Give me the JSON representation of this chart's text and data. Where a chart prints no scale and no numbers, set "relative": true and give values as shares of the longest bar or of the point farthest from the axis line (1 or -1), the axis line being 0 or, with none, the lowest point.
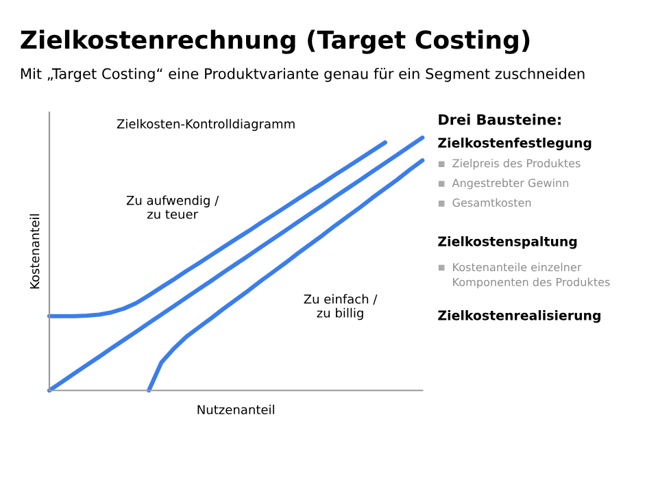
{
  "chart_data": [
    {
      "type": "line",
      "title": "Zielkostenrechnung (Target Costing)",
      "subtitle": "Mit „Target Costing“ eine Produktvariante genau für ein Segment zuschneiden",
      "xlabel": "Nutzenanteil",
      "ylabel": "Kostenanteil",
      "relative": true,
      "marker": "none",
      "line_style": "solid",
      "annotations": [
        "Zielkosten-Kontrolldiagramm",
        "Zu aufwendig /\nzu teuer",
        "Zu einfach /\nzu billig"
      ],
      "categories": [
        null,
        null,
        null,
        null,
        null,
        null,
        null,
        null,
        null,
        null,
        null,
        null,
        null,
        null,
        null,
        null,
        null,
        null,
        null,
        null,
        null,
        null,
        null,
        null,
        null,
        null,
        null,
        null,
        null,
        null,
        null
      ],
      "series": [
        {
          "color": "#3b7dea",
          "values": [
            0.294,
            0.294,
            0.294,
            0.296,
            0.3,
            0.309,
            0.324,
            0.346,
            0.376,
            0.408,
            0.439,
            0.472,
            0.503,
            0.535,
            0.567,
            0.599,
            0.63,
            0.663,
            0.694,
            0.726,
            0.758,
            0.79,
            0.821,
            0.854,
            0.885,
            0.917,
            0.949,
            0.981,
            null,
            null,
            null
          ]
        },
        {
          "color": "#3b7dea",
          "values": [
            0,
            0.033,
            0.067,
            0.1,
            0.133,
            0.167,
            0.2,
            0.233,
            0.267,
            0.3,
            0.333,
            0.367,
            0.4,
            0.433,
            0.467,
            0.5,
            0.533,
            0.567,
            0.6,
            0.633,
            0.667,
            0.7,
            0.733,
            0.767,
            0.8,
            0.833,
            0.867,
            0.9,
            0.933,
            0.967,
            1
          ]
        },
        {
          "color": "#3b7dea",
          "values": [
            null,
            null,
            null,
            null,
            null,
            null,
            null,
            null,
            0,
            0.11,
            0.165,
            0.212,
            0.249,
            0.285,
            0.323,
            0.359,
            0.395,
            0.433,
            0.469,
            0.505,
            0.543,
            0.579,
            0.615,
            0.653,
            0.689,
            0.725,
            0.763,
            0.799,
            0.835,
            0.874,
            0.91
          ]
        }
      ]
    },
    {
      "type": "other",
      "title": "Drei Bausteine:",
      "annotations": [
        "Zielkostenfestlegung",
        "Zielpreis des Produktes",
        "Angestrebter Gewinn",
        "Gesamtkosten",
        "Zielkostenspaltung",
        "Kostenanteile einzelner\nKomponenten des Produktes",
        "Zielkostenrealisierung"
      ]
    }
  ]
}
